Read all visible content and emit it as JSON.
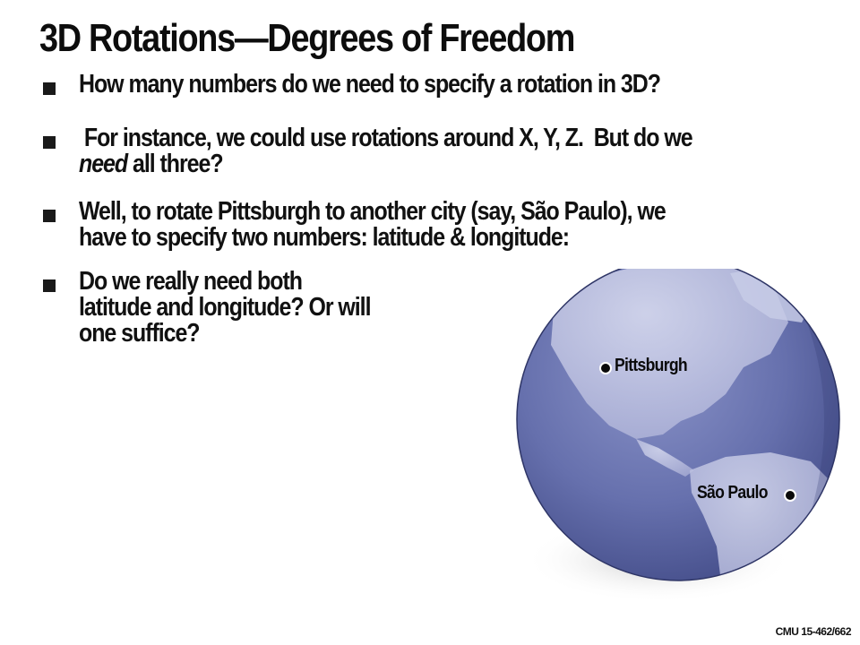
{
  "slide": {
    "title": "3D Rotations—Degrees of Freedom",
    "bullets": [
      {
        "lines": [
          "How many numbers do we need to specify a rotation in 3D?"
        ]
      },
      {
        "lines": [
          " For instance, we could use rotations around X, Y, Z.  But do we"
        ],
        "emphasis": "need",
        "rest": " all three?"
      },
      {
        "lines": [
          "Well, to rotate Pittsburgh to another city (say, São Paulo), we",
          "have to specify two numbers: latitude & longitude:"
        ]
      },
      {
        "lines": [
          "Do we really need both",
          "latitude and longitude?  Or will",
          "one suffice?"
        ]
      }
    ],
    "globe": {
      "city_a": "Pittsburgh",
      "city_b": "São Paulo",
      "ocean_color": "#5f6aa8",
      "land_color": "#b9bedf"
    },
    "footer": "CMU 15-462/662"
  }
}
